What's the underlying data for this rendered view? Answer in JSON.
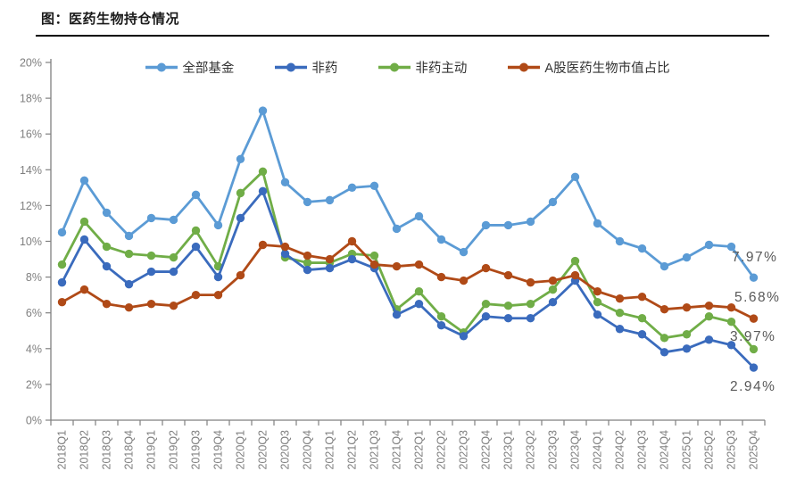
{
  "title": "图：医药生物持仓情况",
  "colors": {
    "axis": "#808080",
    "tick_label": "#7f7f7f",
    "annotation": "#595959",
    "title_rule": "#000000"
  },
  "chart_data": {
    "type": "line",
    "title": "图：医药生物持仓情况",
    "xlabel": "",
    "ylabel": "",
    "ylim": [
      0,
      20
    ],
    "ytick_step": 2,
    "ytick_labels": [
      "0%",
      "2%",
      "4%",
      "6%",
      "8%",
      "10%",
      "12%",
      "14%",
      "16%",
      "18%",
      "20%"
    ],
    "grid": false,
    "legend_position": "top",
    "categories": [
      "2018Q1",
      "2018Q2",
      "2018Q3",
      "2018Q4",
      "2019Q1",
      "2019Q2",
      "2019Q3",
      "2019Q4",
      "2020Q1",
      "2020Q2",
      "2020Q3",
      "2020Q4",
      "2021Q1",
      "2021Q2",
      "2021Q3",
      "2021Q4",
      "2022Q1",
      "2022Q2",
      "2022Q3",
      "2022Q4",
      "2023Q1",
      "2023Q2",
      "2023Q3",
      "2023Q4",
      "2024Q1",
      "2024Q2",
      "2024Q3",
      "2024Q4",
      "2025Q1",
      "2025Q2",
      "2025Q3",
      "2025Q4"
    ],
    "series": [
      {
        "name": "全部基金",
        "color": "#5B9BD5",
        "values": [
          10.5,
          13.4,
          11.6,
          10.3,
          11.3,
          11.2,
          12.6,
          10.9,
          14.6,
          17.3,
          13.3,
          12.2,
          12.3,
          13.0,
          13.1,
          10.7,
          11.4,
          10.1,
          9.4,
          10.9,
          10.9,
          11.1,
          12.2,
          13.6,
          11.0,
          10.0,
          9.6,
          8.6,
          9.1,
          9.8,
          9.7,
          7.97
        ]
      },
      {
        "name": "非药",
        "color": "#3A6BBD",
        "values": [
          7.7,
          10.1,
          8.6,
          7.6,
          8.3,
          8.3,
          9.7,
          8.0,
          11.3,
          12.8,
          9.3,
          8.4,
          8.5,
          9.0,
          8.5,
          5.9,
          6.5,
          5.3,
          4.7,
          5.8,
          5.7,
          5.7,
          6.6,
          7.8,
          5.9,
          5.1,
          4.8,
          3.8,
          4.0,
          4.5,
          4.2,
          2.94
        ]
      },
      {
        "name": "非药主动",
        "color": "#70AD47",
        "values": [
          8.7,
          11.1,
          9.7,
          9.3,
          9.2,
          9.1,
          10.6,
          8.6,
          12.7,
          13.9,
          9.1,
          8.8,
          8.8,
          9.3,
          9.2,
          6.2,
          7.2,
          5.8,
          4.9,
          6.5,
          6.4,
          6.5,
          7.3,
          8.9,
          6.6,
          6.0,
          5.7,
          4.6,
          4.8,
          5.8,
          5.5,
          3.97
        ]
      },
      {
        "name": "A股医药生物市值占比",
        "color": "#B04A17",
        "values": [
          6.6,
          7.3,
          6.5,
          6.3,
          6.5,
          6.4,
          7.0,
          7.0,
          8.1,
          9.8,
          9.7,
          9.2,
          9.0,
          10.0,
          8.7,
          8.6,
          8.7,
          8.0,
          7.8,
          8.5,
          8.1,
          7.7,
          7.8,
          8.1,
          7.2,
          6.8,
          6.9,
          6.2,
          6.3,
          6.4,
          6.3,
          5.68
        ]
      }
    ],
    "annotations": [
      {
        "text": "7.97%",
        "x": 820,
        "y": 293
      },
      {
        "text": "5.68%",
        "x": 823,
        "y": 338
      },
      {
        "text": "3.97%",
        "x": 818,
        "y": 382
      },
      {
        "text": "2.94%",
        "x": 818,
        "y": 438
      }
    ]
  }
}
